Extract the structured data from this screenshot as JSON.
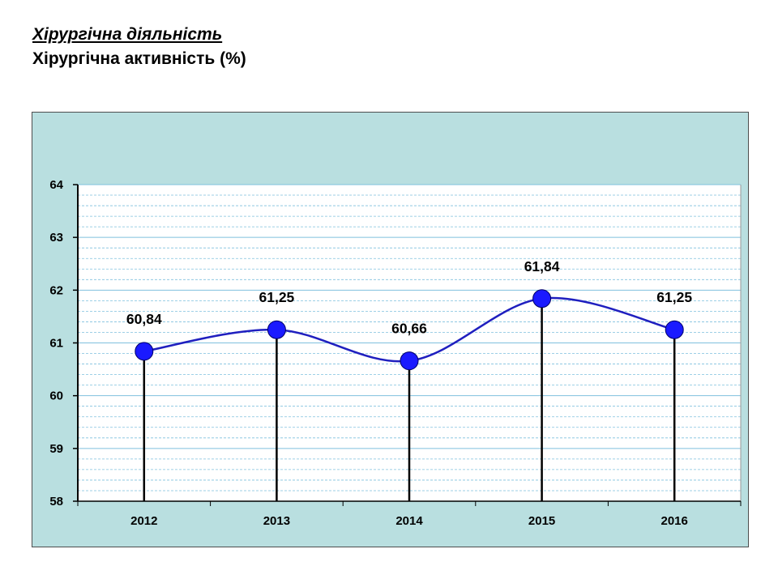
{
  "heading": {
    "line1": "Хірургічна діяльність",
    "line2": "Хірургічна активність  (%)"
  },
  "chart_data": {
    "type": "line",
    "title": "",
    "xlabel": "",
    "ylabel": "",
    "categories": [
      "2012",
      "2013",
      "2014",
      "2015",
      "2016"
    ],
    "series": [
      {
        "values": [
          60.84,
          61.25,
          60.66,
          61.84,
          61.25
        ],
        "data_labels": [
          "60,84",
          "61,25",
          "60,66",
          "61,84",
          "61,25"
        ]
      }
    ],
    "ylim": [
      58,
      64
    ],
    "yticks": [
      "58",
      "59",
      "60",
      "61",
      "62",
      "63",
      "64"
    ],
    "ytick_values": [
      58,
      59,
      60,
      61,
      62,
      63,
      64
    ],
    "minor_grid_step": 0.2,
    "grid": true,
    "drop_lines": true,
    "smoothed": true,
    "colors": {
      "panel_bg": "#b9dfe0",
      "plot_bg": "#ffffff",
      "major_grid": "#7fc0de",
      "minor_grid": "#7fc0de",
      "line": "#1f1fbf",
      "marker": "#1a1aff",
      "drop_line": "#000000",
      "axis": "#000000"
    }
  }
}
